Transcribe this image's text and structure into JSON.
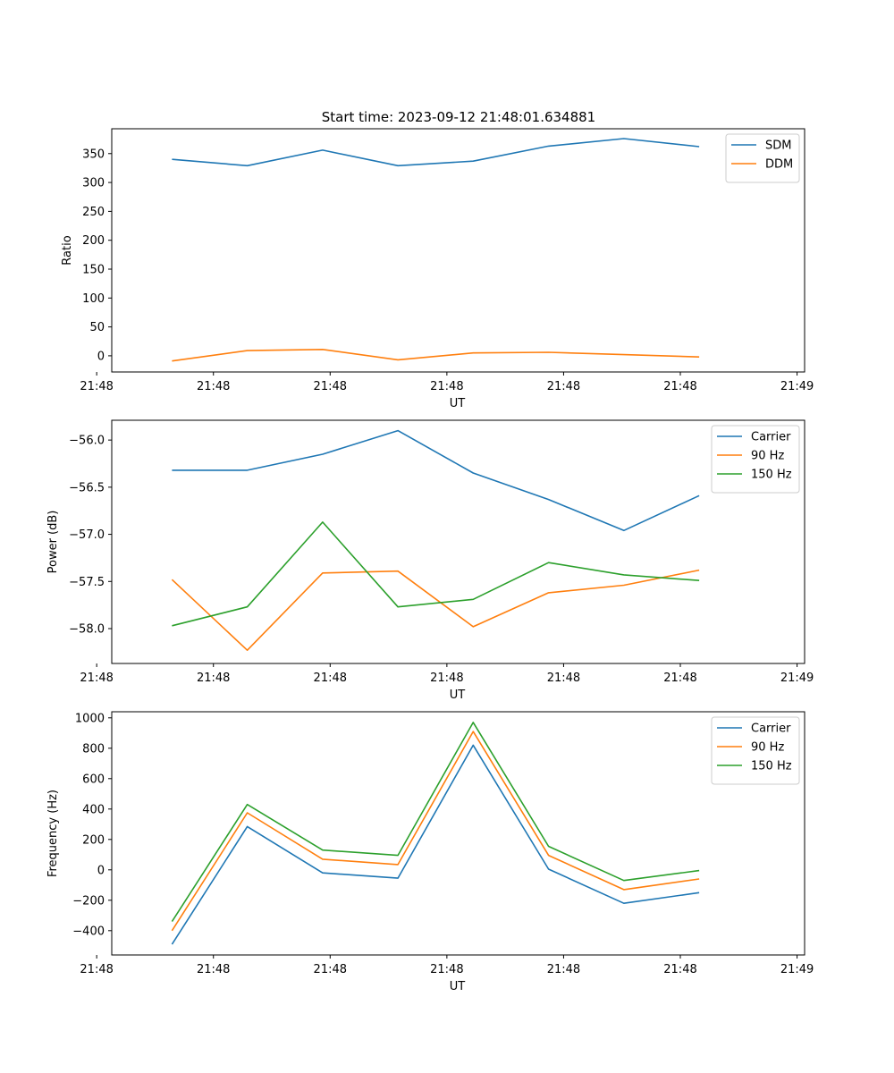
{
  "figure": {
    "title": "Start time: 2023-09-12 21:48:01.634881"
  },
  "colors": {
    "blue": "#1f77b4",
    "orange": "#ff7f0e",
    "green": "#2ca02c"
  },
  "chart_data": [
    {
      "type": "line",
      "title": "Start time: 2023-09-12 21:48:01.634881",
      "xlabel": "UT",
      "ylabel": "Ratio",
      "x": [
        1,
        2,
        3,
        4,
        5,
        6,
        7,
        8
      ],
      "xlim": [
        0.2,
        9.4
      ],
      "x_ticks": [
        0,
        1.55,
        3.1,
        4.65,
        6.2,
        7.75,
        9.3
      ],
      "x_tick_labels": [
        "21:48",
        "21:48",
        "21:48",
        "21:48",
        "21:48",
        "21:48",
        "21:49"
      ],
      "ylim": [
        -28,
        393
      ],
      "y_ticks": [
        0,
        50,
        100,
        150,
        200,
        250,
        300,
        350
      ],
      "y_tick_labels": [
        "0",
        "50",
        "100",
        "150",
        "200",
        "250",
        "300",
        "350"
      ],
      "legend": "top-right",
      "series": [
        {
          "name": "SDM",
          "color": "#1f77b4",
          "values": [
            340,
            329,
            356,
            329,
            337,
            363,
            376,
            362
          ]
        },
        {
          "name": "DDM",
          "color": "#ff7f0e",
          "values": [
            -9,
            9,
            11,
            -7,
            5,
            6,
            2,
            -2
          ]
        }
      ]
    },
    {
      "type": "line",
      "xlabel": "UT",
      "ylabel": "Power (dB)",
      "x": [
        1,
        2,
        3,
        4,
        5,
        6,
        7,
        8
      ],
      "xlim": [
        0.2,
        9.4
      ],
      "x_ticks": [
        0,
        1.55,
        3.1,
        4.65,
        6.2,
        7.75,
        9.3
      ],
      "x_tick_labels": [
        "21:48",
        "21:48",
        "21:48",
        "21:48",
        "21:48",
        "21:48",
        "21:49"
      ],
      "ylim": [
        -58.37,
        -55.79
      ],
      "y_ticks": [
        -58.0,
        -57.5,
        -57.0,
        -56.5,
        -56.0
      ],
      "y_tick_labels": [
        "−58.0",
        "−57.5",
        "−57.0",
        "−56.5",
        "−56.0"
      ],
      "legend": "top-right",
      "series": [
        {
          "name": "Carrier",
          "color": "#1f77b4",
          "values": [
            -56.32,
            -56.32,
            -56.15,
            -55.9,
            -56.35,
            -56.63,
            -56.96,
            -56.59
          ]
        },
        {
          "name": "90 Hz",
          "color": "#ff7f0e",
          "values": [
            -57.48,
            -58.23,
            -57.41,
            -57.39,
            -57.98,
            -57.62,
            -57.54,
            -57.38
          ]
        },
        {
          "name": "150 Hz",
          "color": "#2ca02c",
          "values": [
            -57.97,
            -57.77,
            -56.87,
            -57.77,
            -57.69,
            -57.3,
            -57.43,
            -57.49
          ]
        }
      ]
    },
    {
      "type": "line",
      "xlabel": "UT",
      "ylabel": "Frequency (Hz)",
      "x": [
        1,
        2,
        3,
        4,
        5,
        6,
        7,
        8
      ],
      "xlim": [
        0.2,
        9.4
      ],
      "x_ticks": [
        0,
        1.55,
        3.1,
        4.65,
        6.2,
        7.75,
        9.3
      ],
      "x_tick_labels": [
        "21:48",
        "21:48",
        "21:48",
        "21:48",
        "21:48",
        "21:48",
        "21:49"
      ],
      "ylim": [
        -560,
        1040
      ],
      "y_ticks": [
        -400,
        -200,
        0,
        200,
        400,
        600,
        800,
        1000
      ],
      "y_tick_labels": [
        "−400",
        "−200",
        "0",
        "200",
        "400",
        "600",
        "800",
        "1000"
      ],
      "legend": "top-right",
      "series": [
        {
          "name": "Carrier",
          "color": "#1f77b4",
          "values": [
            -490,
            285,
            -20,
            -55,
            820,
            5,
            -220,
            -150
          ]
        },
        {
          "name": "90 Hz",
          "color": "#ff7f0e",
          "values": [
            -400,
            375,
            70,
            35,
            910,
            95,
            -130,
            -60
          ]
        },
        {
          "name": "150 Hz",
          "color": "#2ca02c",
          "values": [
            -340,
            430,
            130,
            95,
            970,
            155,
            -70,
            -5
          ]
        }
      ]
    }
  ]
}
